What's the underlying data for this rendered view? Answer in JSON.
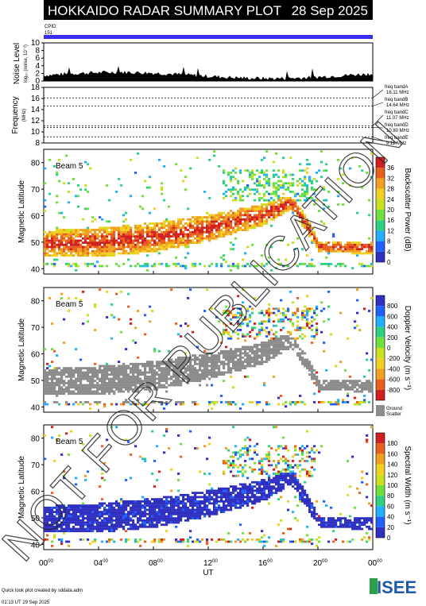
{
  "header": {
    "title": "HOKKAIDO RADAR SUMMARY PLOT",
    "date": "28 Sep 2025"
  },
  "cpid": {
    "label": "CPID:",
    "value": "151"
  },
  "noise_panel": {
    "ylabel": "Noise Level",
    "ylabel_small": "log₁₀ (noise, 10⁻²)",
    "ticks": [
      "0",
      "2",
      "4",
      "6",
      "8",
      "10"
    ]
  },
  "freq_panel": {
    "ylabel": "Frequency",
    "ylabel_unit": "(MHz)",
    "ticks": [
      "8",
      "10",
      "12",
      "14",
      "16",
      "18"
    ],
    "bands": [
      {
        "name": "freq bandA",
        "value": "16.11 MHz"
      },
      {
        "name": "freq bandB",
        "value": "14.64 MHz"
      },
      {
        "name": "freq bandC",
        "value": "11.07 MHz"
      },
      {
        "name": "freq bandD",
        "value": "10.80 MHz"
      },
      {
        "name": "freq bandE",
        "value": "9.11 MHz"
      }
    ]
  },
  "panels": [
    {
      "beam": "Beam  5",
      "ylabel": "Magnetic Latitude",
      "cb_label": "Backscatter Power (dB)",
      "cb_ticks": [
        "0",
        "4",
        "8",
        "12",
        "16",
        "20",
        "24",
        "28",
        "32",
        "36"
      ],
      "cb_colors": [
        "#3030c0",
        "#2060ff",
        "#20b0ff",
        "#30d080",
        "#70e040",
        "#c8e020",
        "#f0d020",
        "#f0a020",
        "#e86020",
        "#d02020"
      ]
    },
    {
      "beam": "Beam  5",
      "ylabel": "Magnetic Latitude",
      "cb_label": "Doppler Velocity (m s⁻¹)",
      "cb_ticks": [
        "800",
        "600",
        "400",
        "200",
        "0",
        "-200",
        "-400",
        "-600",
        "-800"
      ],
      "cb_colors": [
        "#3030c0",
        "#2060ff",
        "#20b0ff",
        "#30d080",
        "#70e040",
        "#c8e020",
        "#f0d020",
        "#f0a020",
        "#e86020",
        "#d02020"
      ],
      "ground_label": "Ground",
      "scatter_label": "Scatter"
    },
    {
      "beam": "Beam  5",
      "ylabel": "Magnetic Latitude",
      "cb_label": "Spectral Width (m s⁻¹)",
      "cb_ticks": [
        "0",
        "20",
        "40",
        "60",
        "80",
        "100",
        "120",
        "140",
        "160",
        "180"
      ],
      "cb_colors": [
        "#3030c0",
        "#2060ff",
        "#20b0ff",
        "#30d080",
        "#70e040",
        "#c8e020",
        "#f0d020",
        "#f0a020",
        "#e86020",
        "#d02020"
      ]
    }
  ],
  "xaxis": {
    "label": "UT",
    "ticks": [
      "00",
      "04",
      "08",
      "12",
      "16",
      "20",
      "00"
    ],
    "tick_sup": "00"
  },
  "lat_ticks": [
    "40",
    "50",
    "60",
    "70",
    "80"
  ],
  "footer": {
    "line1": "Quick look plot created by sddata.adm",
    "line2": "01:13 UT 29 Sep 2025"
  },
  "logo": "ISEE",
  "watermark": "NOT FOR PUBLICATION",
  "chart_data": {
    "type": "heatmap",
    "title": "HOKKAIDO RADAR SUMMARY PLOT",
    "date": "28 Sep 2025",
    "x_unit": "UT hours",
    "xlim": [
      0,
      24
    ],
    "ylim": [
      38,
      85
    ],
    "ylabel": "Magnetic Latitude",
    "beam": 5,
    "cpid": 151,
    "frequency_bands_MHz": [
      16.11,
      14.64,
      11.07,
      10.8,
      9.11
    ],
    "noise_ylim": [
      0,
      10
    ],
    "freq_ylim": [
      8,
      18
    ],
    "backscatter_power_range_dB": [
      0,
      36
    ],
    "doppler_velocity_range": [
      -800,
      800
    ],
    "spectral_width_range": [
      0,
      180
    ],
    "main_band": {
      "ut": [
        0,
        4,
        8,
        12,
        14,
        16,
        17,
        18,
        19,
        20,
        24
      ],
      "lat_bottom": [
        44,
        44,
        46,
        50,
        53,
        56,
        59,
        62,
        54,
        46,
        45
      ],
      "lat_top": [
        54,
        55,
        57,
        60,
        62,
        64,
        66,
        67,
        60,
        50,
        50
      ]
    }
  }
}
